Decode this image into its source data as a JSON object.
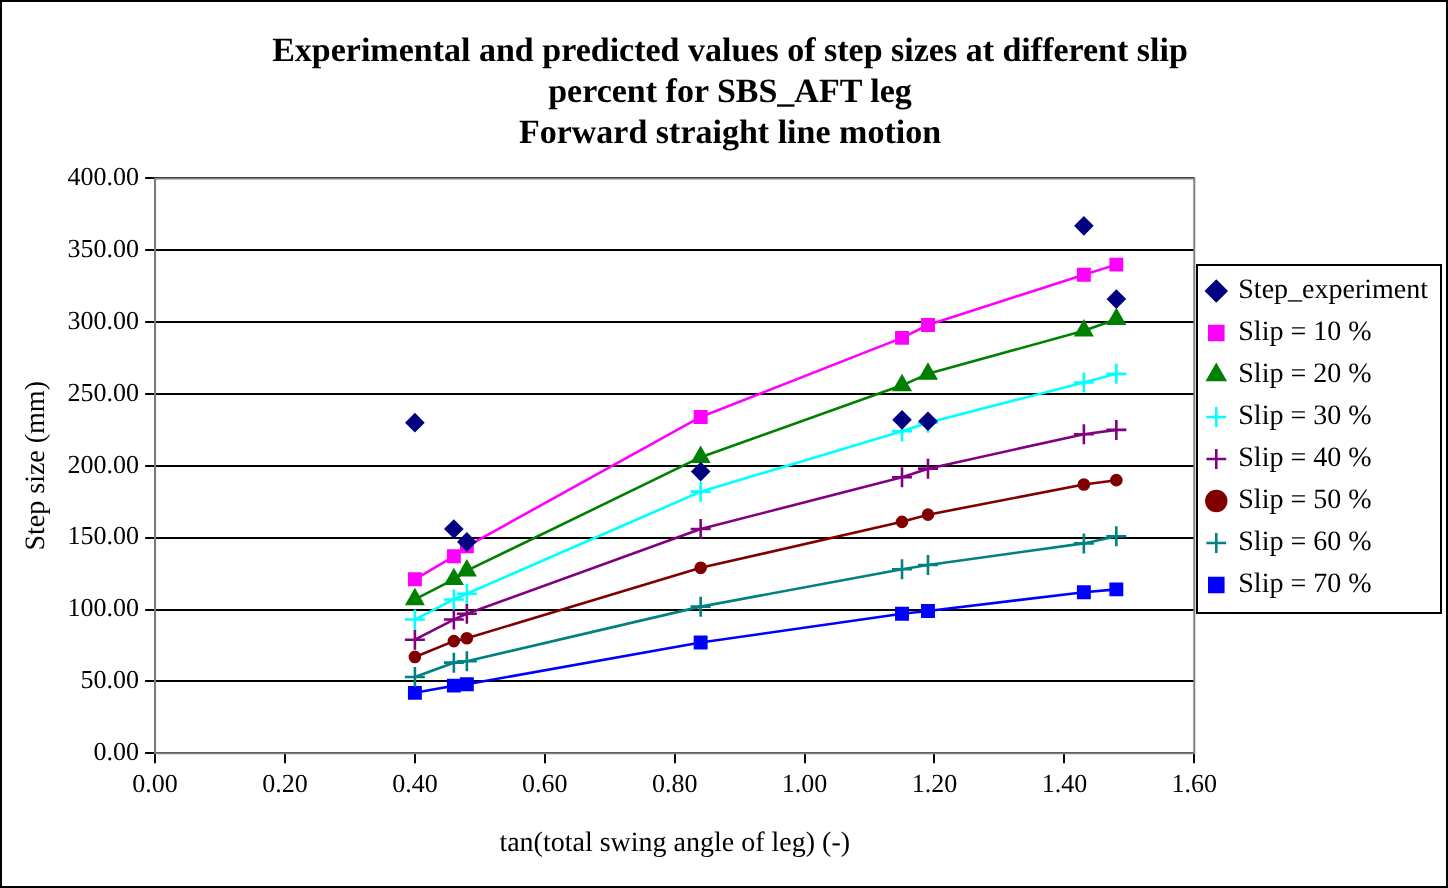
{
  "chart_data": {
    "type": "line",
    "title": "Experimental and predicted values of step sizes at different slip percent for SBS_AFT leg",
    "subtitle": "Forward straight line motion",
    "xlabel": "tan(total swing angle of leg) (-)",
    "ylabel": "Step size (mm)",
    "x": [
      0.4,
      0.46,
      0.48,
      0.84,
      1.15,
      1.19,
      1.43,
      1.48
    ],
    "series": [
      {
        "name": "Step_experiment",
        "type": "scatter",
        "marker": "diamond",
        "color": "#000080",
        "values": [
          230,
          156,
          147,
          196,
          232,
          231,
          367,
          316
        ]
      },
      {
        "name": "Slip = 10 %",
        "marker": "square",
        "color": "#ff00ff",
        "values": [
          121,
          137,
          144,
          234,
          289,
          298,
          333,
          340
        ]
      },
      {
        "name": "Slip = 20 %",
        "marker": "triangle",
        "color": "#008000",
        "values": [
          107,
          121,
          127,
          206,
          256,
          264,
          294,
          302
        ]
      },
      {
        "name": "Slip = 30 %",
        "marker": "cross",
        "color": "#00ffff",
        "values": [
          93,
          107,
          111,
          182,
          224,
          230,
          258,
          264
        ]
      },
      {
        "name": "Slip = 40 %",
        "marker": "cross",
        "color": "#800080",
        "values": [
          79,
          93,
          97,
          156,
          192,
          198,
          222,
          225
        ]
      },
      {
        "name": "Slip = 50 %",
        "marker": "circle",
        "color": "#800000",
        "values": [
          67,
          78,
          80,
          129,
          161,
          166,
          187,
          190
        ]
      },
      {
        "name": "Slip = 60 %",
        "marker": "cross",
        "color": "#008080",
        "values": [
          53,
          63,
          64,
          102,
          128,
          131,
          146,
          151
        ]
      },
      {
        "name": "Slip = 70 %",
        "marker": "square",
        "color": "#0000ff",
        "values": [
          42,
          47,
          48,
          77,
          97,
          99,
          112,
          114
        ]
      }
    ],
    "xlim": [
      0,
      1.6
    ],
    "xticks": [
      {
        "value": 0,
        "label": "0.00"
      },
      {
        "value": 0.2,
        "label": "0.20"
      },
      {
        "value": 0.4,
        "label": "0.40"
      },
      {
        "value": 0.6,
        "label": "0.60"
      },
      {
        "value": 0.8,
        "label": "0.80"
      },
      {
        "value": 1.0,
        "label": "1.00"
      },
      {
        "value": 1.2,
        "label": "1.20"
      },
      {
        "value": 1.4,
        "label": "1.40"
      },
      {
        "value": 1.6,
        "label": "1.60"
      }
    ],
    "ylim": [
      0,
      400
    ],
    "yticks": [
      {
        "value": 0,
        "label": "0.00"
      },
      {
        "value": 50,
        "label": "50.00"
      },
      {
        "value": 100,
        "label": "100.00"
      },
      {
        "value": 150,
        "label": "150.00"
      },
      {
        "value": 200,
        "label": "200.00"
      },
      {
        "value": 250,
        "label": "250.00"
      },
      {
        "value": 300,
        "label": "300.00"
      },
      {
        "value": 350,
        "label": "350.00"
      },
      {
        "value": 400,
        "label": "400.00"
      }
    ],
    "grid": "y",
    "legend": "right",
    "line_style": "solid"
  }
}
